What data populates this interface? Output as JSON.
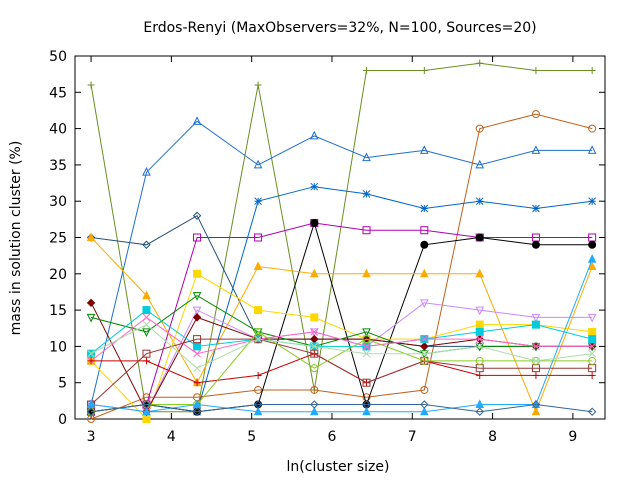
{
  "chart_data": {
    "type": "line",
    "title": "Erdos-Renyi (MaxObservers=32%, N=100, Sources=20)",
    "xlabel": "ln(cluster size)",
    "ylabel": "mass in solution cluster (%)",
    "xlim": [
      2.8,
      9.4
    ],
    "ylim": [
      0,
      50
    ],
    "xticks": [
      3,
      4,
      5,
      6,
      7,
      8,
      9
    ],
    "yticks": [
      0,
      5,
      10,
      15,
      20,
      25,
      30,
      35,
      40,
      45,
      50
    ],
    "grid": false,
    "legend": "none",
    "x": [
      3.0,
      3.69,
      4.32,
      5.08,
      5.78,
      6.43,
      7.15,
      7.84,
      8.54,
      9.24
    ],
    "series": [
      {
        "color": "#6b8e23",
        "marker": "plus",
        "values": [
          46,
          1,
          1,
          46,
          4,
          48,
          48,
          49,
          48,
          48
        ]
      },
      {
        "color": "#1e6fcf",
        "marker": "triangle-up",
        "values": [
          2,
          34,
          41,
          35,
          39,
          36,
          37,
          35,
          37,
          37
        ]
      },
      {
        "color": "#c0601a",
        "marker": "circle",
        "values": [
          0,
          3,
          3,
          4,
          4,
          3,
          4,
          40,
          42,
          40
        ]
      },
      {
        "color": "#0066cc",
        "marker": "star",
        "values": [
          1,
          2,
          1,
          30,
          32,
          31,
          29,
          30,
          29,
          30
        ]
      },
      {
        "color": "#23507d",
        "marker": "diamond",
        "values": [
          25,
          24,
          28,
          11,
          11,
          11,
          10,
          10,
          10,
          10
        ]
      },
      {
        "color": "#b000b0",
        "marker": "square",
        "values": [
          1,
          2,
          25,
          25,
          27,
          26,
          26,
          25,
          25,
          25
        ]
      },
      {
        "color": "#000000",
        "marker": "filled-circle",
        "values": [
          1,
          2,
          1,
          2,
          27,
          2,
          24,
          25,
          24,
          24
        ]
      },
      {
        "color": "#ffaa00",
        "marker": "filled-triangle",
        "values": [
          25,
          17,
          5,
          21,
          20,
          20,
          20,
          20,
          1,
          21
        ]
      },
      {
        "color": "#ffd700",
        "marker": "filled-square",
        "values": [
          8,
          0,
          20,
          15,
          14,
          11,
          11,
          13,
          13,
          12
        ]
      },
      {
        "color": "#cc88ff",
        "marker": "triangle-down",
        "values": [
          2,
          1,
          15,
          11,
          12,
          10,
          16,
          15,
          14,
          14
        ]
      },
      {
        "color": "#800000",
        "marker": "filled-diamond",
        "values": [
          16,
          1,
          14,
          11,
          11,
          11,
          10,
          11,
          10,
          10
        ]
      },
      {
        "color": "#008b00",
        "marker": "triangle-down",
        "values": [
          14,
          12,
          17,
          12,
          10,
          12,
          9,
          10,
          10,
          10
        ]
      },
      {
        "color": "#00ccdd",
        "marker": "filled-square",
        "values": [
          9,
          15,
          10,
          11,
          10,
          10,
          11,
          12,
          13,
          11
        ]
      },
      {
        "color": "#ff66cc",
        "marker": "x",
        "values": [
          8,
          14,
          9,
          11,
          12,
          10,
          11,
          11,
          10,
          10
        ]
      },
      {
        "color": "#cc0000",
        "marker": "plus",
        "values": [
          8,
          8,
          5,
          6,
          9,
          5,
          8,
          6,
          6,
          6
        ]
      },
      {
        "color": "#993333",
        "marker": "square",
        "values": [
          2,
          9,
          11,
          11,
          9,
          5,
          8,
          7,
          7,
          7
        ]
      },
      {
        "color": "#88cc22",
        "marker": "circle",
        "values": [
          1,
          2,
          2,
          12,
          7,
          11,
          8,
          8,
          8,
          8
        ]
      },
      {
        "color": "#22aaff",
        "marker": "filled-triangle",
        "values": [
          2,
          1,
          2,
          1,
          1,
          1,
          1,
          2,
          2,
          22
        ]
      },
      {
        "color": "#336699",
        "marker": "diamond",
        "values": [
          1,
          2,
          1,
          2,
          2,
          2,
          2,
          1,
          2,
          1
        ]
      },
      {
        "color": "#aaddaa",
        "marker": "x",
        "values": [
          9,
          13,
          7,
          11,
          10,
          9,
          9,
          10,
          8,
          9
        ]
      }
    ]
  }
}
